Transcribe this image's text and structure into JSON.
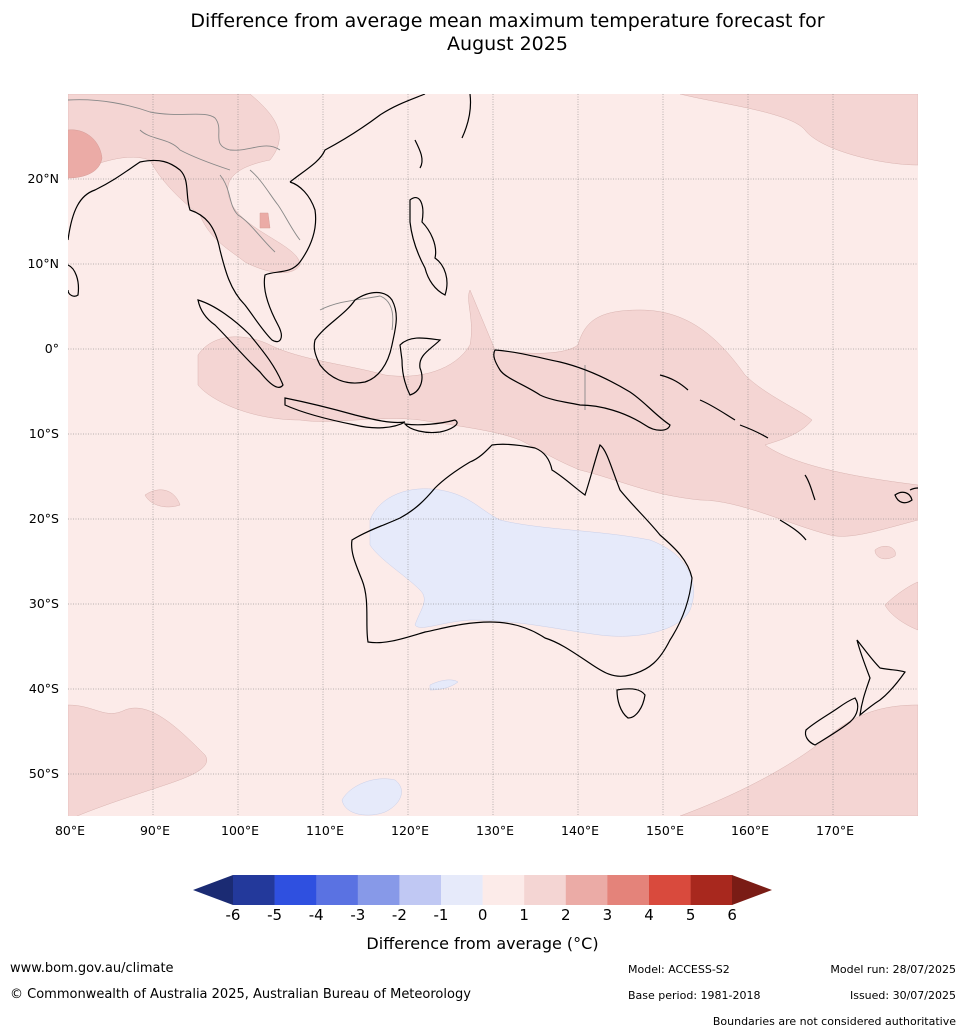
{
  "title": "Difference from average mean maximum temperature forecast for",
  "title_line2": "August 2025",
  "lat_labels": [
    "20°N",
    "10°N",
    "0°",
    "10°S",
    "20°S",
    "30°S",
    "40°S",
    "50°S"
  ],
  "lon_labels": [
    "80°E",
    "90°E",
    "100°E",
    "110°E",
    "120°E",
    "130°E",
    "140°E",
    "150°E",
    "160°E",
    "170°E"
  ],
  "colorbar": {
    "ticks": [
      "-6",
      "-5",
      "-4",
      "-3",
      "-2",
      "-1",
      "0",
      "1",
      "2",
      "3",
      "4",
      "5",
      "6"
    ],
    "colors": [
      "#23399b",
      "#2f50e0",
      "#5a72e2",
      "#8799e8",
      "#c0c8f3",
      "#e6eafa",
      "#fcebe9",
      "#f4d5d3",
      "#ebaba6",
      "#e4837a",
      "#d94a3d",
      "#a8281e"
    ],
    "low_extend_color": "#1b2b73",
    "high_extend_color": "#7a1c15",
    "label": "Difference from average (°C)"
  },
  "legend_categories": [
    {
      "name": "0 to 1",
      "color": "#fcebe9"
    },
    {
      "name": "1 to 2",
      "color": "#f4d5d3"
    },
    {
      "name": "2 to 3",
      "color": "#ebaba6"
    },
    {
      "name": "-1 to 0",
      "color": "#e6eafa"
    }
  ],
  "footer": {
    "url": "www.bom.gov.au/climate",
    "copyright": "© Commonwealth of Australia 2025, Australian Bureau of Meteorology",
    "model": "Model: ACCESS-S2",
    "base_period": "Base period: 1981-2018",
    "model_run": "Model run: 28/07/2025",
    "issued": "Issued: 30/07/2025",
    "disclaimer": "Boundaries are not considered authoritative"
  }
}
